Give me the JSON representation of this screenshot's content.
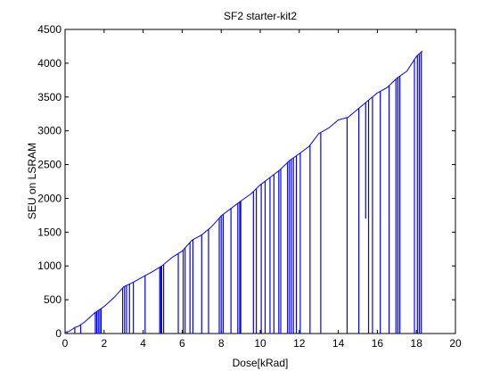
{
  "chart_data": {
    "type": "line",
    "title": "SF2 starter-kit2",
    "xlabel": "Dose[kRad]",
    "ylabel": "SEU on LSRAM",
    "xlim": [
      0,
      20
    ],
    "ylim": [
      0,
      4500
    ],
    "xticks": [
      0,
      2,
      4,
      6,
      8,
      10,
      12,
      14,
      16,
      18,
      20
    ],
    "yticks": [
      0,
      500,
      1000,
      1500,
      2000,
      2500,
      3000,
      3500,
      4000,
      4500
    ],
    "grid": false,
    "series_color": "#0000ff",
    "series": [
      {
        "x": [
          0.0,
          0.2,
          0.35,
          0.5,
          0.7,
          1.0,
          1.5,
          2.0,
          2.5,
          3.0,
          3.5,
          4.0,
          4.5,
          5.0,
          5.5,
          6.0,
          6.5,
          7.0,
          7.5,
          8.0,
          8.5,
          9.0,
          9.5,
          10.0,
          10.5,
          11.0,
          11.5,
          12.0,
          12.5,
          13.0,
          13.5,
          14.0,
          14.5,
          15.0,
          15.5,
          16.0,
          16.5,
          17.0,
          17.5,
          18.0,
          18.3
        ],
        "y": [
          20,
          30,
          60,
          90,
          110,
          170,
          300,
          400,
          530,
          690,
          760,
          840,
          920,
          1010,
          1130,
          1220,
          1380,
          1460,
          1580,
          1740,
          1850,
          1960,
          2060,
          2200,
          2310,
          2420,
          2560,
          2660,
          2770,
          2960,
          3040,
          3160,
          3200,
          3320,
          3440,
          3560,
          3640,
          3780,
          3880,
          4100,
          4180
        ]
      }
    ],
    "drop_x": [
      0.1,
      0.5,
      0.8,
      1.55,
      1.62,
      1.7,
      1.78,
      1.85,
      2.95,
      3.05,
      3.15,
      3.3,
      3.5,
      4.1,
      4.85,
      4.9,
      4.95,
      5.05,
      5.8,
      6.05,
      6.15,
      6.4,
      6.55,
      7.0,
      7.35,
      7.9,
      8.0,
      8.1,
      8.5,
      8.85,
      8.95,
      9.0,
      9.65,
      9.8,
      10.05,
      10.25,
      10.5,
      10.7,
      10.95,
      11.05,
      11.4,
      11.5,
      11.6,
      11.7,
      11.85,
      12.05,
      12.55,
      13.1,
      14.45,
      15.05,
      15.4,
      15.55,
      15.75,
      16.15,
      16.6,
      16.95,
      17.05,
      17.15,
      17.9,
      18.05,
      18.15,
      18.25
    ],
    "drop_y": [
      0,
      0,
      0,
      0,
      0,
      0,
      0,
      0,
      0,
      0,
      0,
      0,
      0,
      0,
      0,
      0,
      0,
      0,
      0,
      0,
      0,
      0,
      0,
      0,
      0,
      0,
      0,
      0,
      0,
      0,
      0,
      0,
      0,
      0,
      0,
      0,
      0,
      0,
      0,
      0,
      0,
      0,
      0,
      0,
      0,
      0,
      0,
      0,
      0,
      0,
      1700,
      0,
      0,
      0,
      0,
      0,
      0,
      0,
      0,
      0,
      0,
      0
    ]
  }
}
